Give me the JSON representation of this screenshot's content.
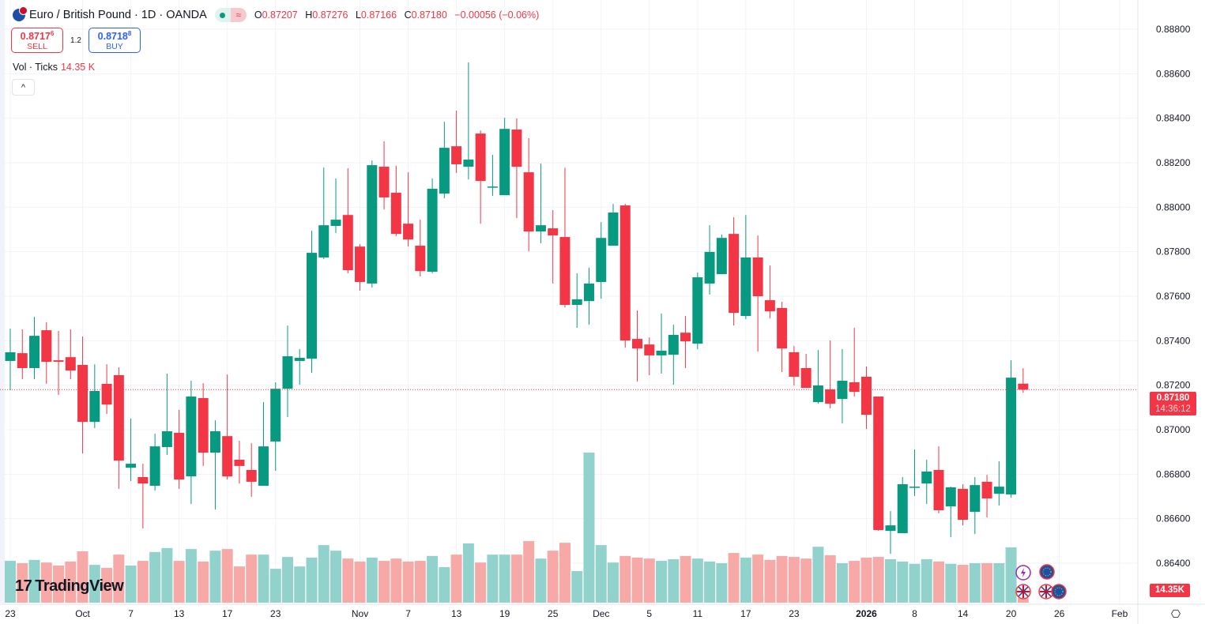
{
  "header": {
    "symbol_title": "Euro / British Pound · 1D · OANDA",
    "status_icon": "market-open-dot",
    "delay_icon": "approx-icon",
    "delay_glyph": "≈",
    "ohlc": {
      "o_label": "O",
      "o": "0.87207",
      "h_label": "H",
      "h": "0.87276",
      "l_label": "L",
      "l": "0.87166",
      "c_label": "C",
      "c": "0.87180",
      "change": "−0.00056 (−0.06%)"
    }
  },
  "trade": {
    "sell_price_main": "0.8717",
    "sell_price_sup": "6",
    "sell_label": "SELL",
    "spread": "1.2",
    "buy_price_main": "0.8718",
    "buy_price_sup": "8",
    "buy_label": "BUY"
  },
  "volume_legend": {
    "name": "Vol · Ticks",
    "value": "14.35 K"
  },
  "collapse_glyph": "^",
  "logo": {
    "mark": "17",
    "text": "TradingView"
  },
  "price_badge": {
    "price": "0.87180",
    "countdown": "14:36:12"
  },
  "volume_badge": "14.35K",
  "settings_glyph": "⎔",
  "colors": {
    "up": "#089981",
    "down": "#f23645",
    "up_volume": "#92d2cc",
    "down_volume": "#f7a9a7",
    "grid": "#f0f3fa",
    "last_price_line": "#f23645"
  },
  "chart_data": {
    "type": "candlestick",
    "ylim": [
      0.864,
      0.888
    ],
    "grid": true,
    "price_ticks": [
      "0.88800",
      "0.88600",
      "0.88400",
      "0.88200",
      "0.88000",
      "0.87800",
      "0.87600",
      "0.87400",
      "0.87200",
      "0.87000",
      "0.86800",
      "0.86600",
      "0.86400"
    ],
    "last_price": 0.8718,
    "time_ticks": [
      {
        "label": "23",
        "bar": 1
      },
      {
        "label": "Oct",
        "bar": 7
      },
      {
        "label": "7",
        "bar": 11
      },
      {
        "label": "13",
        "bar": 15
      },
      {
        "label": "17",
        "bar": 19
      },
      {
        "label": "23",
        "bar": 23
      },
      {
        "label": "Nov",
        "bar": 30
      },
      {
        "label": "7",
        "bar": 34
      },
      {
        "label": "13",
        "bar": 38
      },
      {
        "label": "19",
        "bar": 42
      },
      {
        "label": "25",
        "bar": 46
      },
      {
        "label": "Dec",
        "bar": 50
      },
      {
        "label": "5",
        "bar": 54
      },
      {
        "label": "11",
        "bar": 58
      },
      {
        "label": "17",
        "bar": 62
      },
      {
        "label": "23",
        "bar": 66
      },
      {
        "label": "2026",
        "bar": 72
      },
      {
        "label": "8",
        "bar": 76
      },
      {
        "label": "14",
        "bar": 80
      },
      {
        "label": "20",
        "bar": 84
      },
      {
        "label": "26",
        "bar": 88
      },
      {
        "label": "Feb",
        "bar": 93
      }
    ],
    "candles_ohlc": [
      [
        0.87309,
        0.87454,
        0.87177,
        0.87348
      ],
      [
        0.87344,
        0.87451,
        0.87227,
        0.87277
      ],
      [
        0.87277,
        0.87507,
        0.87227,
        0.87422
      ],
      [
        0.87447,
        0.87483,
        0.87206,
        0.87305
      ],
      [
        0.87312,
        0.87444,
        0.87156,
        0.87305
      ],
      [
        0.87326,
        0.87451,
        0.87227,
        0.87266
      ],
      [
        0.87291,
        0.87419,
        0.86893,
        0.87035
      ],
      [
        0.87035,
        0.87294,
        0.87007,
        0.87174
      ],
      [
        0.87206,
        0.87294,
        0.87071,
        0.87113
      ],
      [
        0.87245,
        0.8728,
        0.86734,
        0.86861
      ],
      [
        0.86829,
        0.8705,
        0.86769,
        0.86847
      ],
      [
        0.86787,
        0.86847,
        0.86556,
        0.86758
      ],
      [
        0.86748,
        0.86982,
        0.86726,
        0.86925
      ],
      [
        0.86922,
        0.87252,
        0.86886,
        0.86993
      ],
      [
        0.86986,
        0.87089,
        0.86734,
        0.86776
      ],
      [
        0.8679,
        0.8722,
        0.86666,
        0.87149
      ],
      [
        0.87142,
        0.87209,
        0.86837,
        0.86897
      ],
      [
        0.86897,
        0.87042,
        0.86641,
        0.86993
      ],
      [
        0.86971,
        0.87248,
        0.86776,
        0.8679
      ],
      [
        0.86865,
        0.8695,
        0.86758,
        0.86837
      ],
      [
        0.86819,
        0.86939,
        0.86698,
        0.86766
      ],
      [
        0.86748,
        0.87124,
        0.86748,
        0.86925
      ],
      [
        0.86947,
        0.87213,
        0.86815,
        0.87184
      ],
      [
        0.87184,
        0.87468,
        0.87057,
        0.8733
      ],
      [
        0.87309,
        0.87362,
        0.87202,
        0.87323
      ],
      [
        0.87319,
        0.87894,
        0.87255,
        0.87795
      ],
      [
        0.87774,
        0.88178,
        0.87767,
        0.87919
      ],
      [
        0.87916,
        0.88129,
        0.87884,
        0.87944
      ],
      [
        0.87965,
        0.88175,
        0.87703,
        0.87717
      ],
      [
        0.87823,
        0.87834,
        0.87625,
        0.87664
      ],
      [
        0.87657,
        0.8821,
        0.87639,
        0.88189
      ],
      [
        0.88182,
        0.88296,
        0.8799,
        0.88044
      ],
      [
        0.88065,
        0.88186,
        0.8787,
        0.8788
      ],
      [
        0.87926,
        0.88157,
        0.87823,
        0.87855
      ],
      [
        0.87827,
        0.87944,
        0.87689,
        0.87713
      ],
      [
        0.8771,
        0.88129,
        0.87703,
        0.88083
      ],
      [
        0.88061,
        0.88384,
        0.8804,
        0.88267
      ],
      [
        0.88274,
        0.88434,
        0.88154,
        0.88193
      ],
      [
        0.88182,
        0.88651,
        0.88125,
        0.88214
      ],
      [
        0.88331,
        0.88345,
        0.87926,
        0.88118
      ],
      [
        0.8809,
        0.88235,
        0.88051,
        0.88093
      ],
      [
        0.88054,
        0.88402,
        0.88054,
        0.88352
      ],
      [
        0.88349,
        0.88399,
        0.87951,
        0.88182
      ],
      [
        0.88157,
        0.8831,
        0.87802,
        0.87891
      ],
      [
        0.87891,
        0.88196,
        0.87838,
        0.87919
      ],
      [
        0.87905,
        0.87987,
        0.87657,
        0.87873
      ],
      [
        0.87866,
        0.88178,
        0.8755,
        0.87561
      ],
      [
        0.87561,
        0.87703,
        0.87458,
        0.87586
      ],
      [
        0.87578,
        0.87728,
        0.87472,
        0.87657
      ],
      [
        0.87664,
        0.87933,
        0.87589,
        0.87862
      ],
      [
        0.87827,
        0.88015,
        0.87827,
        0.87976
      ],
      [
        0.88008,
        0.88015,
        0.87369,
        0.87401
      ],
      [
        0.87408,
        0.87536,
        0.87216,
        0.87365
      ],
      [
        0.87383,
        0.87415,
        0.87245,
        0.87334
      ],
      [
        0.87334,
        0.87522,
        0.87252,
        0.87355
      ],
      [
        0.87337,
        0.87472,
        0.87202,
        0.87426
      ],
      [
        0.87436,
        0.87511,
        0.87277,
        0.87397
      ],
      [
        0.87387,
        0.87706,
        0.87362,
        0.87685
      ],
      [
        0.87657,
        0.87919,
        0.87607,
        0.87799
      ],
      [
        0.87699,
        0.87877,
        0.87699,
        0.87862
      ],
      [
        0.8788,
        0.87955,
        0.87468,
        0.87525
      ],
      [
        0.87511,
        0.87965,
        0.87497,
        0.87774
      ],
      [
        0.87774,
        0.87873,
        0.87351,
        0.876
      ],
      [
        0.87582,
        0.87738,
        0.875,
        0.87532
      ],
      [
        0.87547,
        0.87575,
        0.87259,
        0.87365
      ],
      [
        0.87348,
        0.87376,
        0.87199,
        0.87238
      ],
      [
        0.87277,
        0.87341,
        0.87188,
        0.87188
      ],
      [
        0.87124,
        0.87358,
        0.87117,
        0.87199
      ],
      [
        0.87181,
        0.87401,
        0.87096,
        0.87117
      ],
      [
        0.87138,
        0.87362,
        0.87028,
        0.8722
      ],
      [
        0.87213,
        0.87458,
        0.87149,
        0.8717
      ],
      [
        0.87238,
        0.87284,
        0.87003,
        0.87067
      ],
      [
        0.87149,
        0.87149,
        0.86545,
        0.86549
      ],
      [
        0.86545,
        0.86634,
        0.86442,
        0.8657
      ],
      [
        0.86535,
        0.86787,
        0.86535,
        0.86755
      ],
      [
        0.86741,
        0.86911,
        0.86702,
        0.86744
      ],
      [
        0.86758,
        0.86865,
        0.86666,
        0.86812
      ],
      [
        0.86819,
        0.86925,
        0.86624,
        0.86638
      ],
      [
        0.86655,
        0.86744,
        0.86517,
        0.86741
      ],
      [
        0.86734,
        0.86755,
        0.8657,
        0.86595
      ],
      [
        0.86631,
        0.86787,
        0.86531,
        0.86751
      ],
      [
        0.86766,
        0.86797,
        0.86606,
        0.86691
      ],
      [
        0.86712,
        0.86858,
        0.86659,
        0.86744
      ],
      [
        0.86709,
        0.87312,
        0.86695,
        0.87234
      ],
      [
        0.87207,
        0.87276,
        0.87166,
        0.8718
      ]
    ],
    "volume_k": [
      127,
      120,
      130,
      122,
      113,
      125,
      156,
      115,
      106,
      146,
      113,
      127,
      154,
      166,
      127,
      163,
      125,
      158,
      163,
      110,
      146,
      146,
      103,
      139,
      110,
      137,
      175,
      158,
      134,
      125,
      137,
      127,
      134,
      125,
      127,
      142,
      108,
      146,
      180,
      122,
      146,
      146,
      146,
      187,
      134,
      158,
      182,
      96,
      456,
      175,
      122,
      142,
      137,
      134,
      127,
      132,
      142,
      134,
      125,
      120,
      151,
      137,
      146,
      130,
      142,
      139,
      134,
      170,
      144,
      120,
      127,
      137,
      139,
      132,
      125,
      118,
      132,
      125,
      118,
      115,
      120,
      120,
      120,
      168,
      14.35
    ]
  },
  "event_icons": [
    "lightning-event-icon",
    "eu-flag-event-icon",
    "uk-flag-event-icon",
    "uk-flag-event-icon",
    "eu-flag-event-icon"
  ]
}
